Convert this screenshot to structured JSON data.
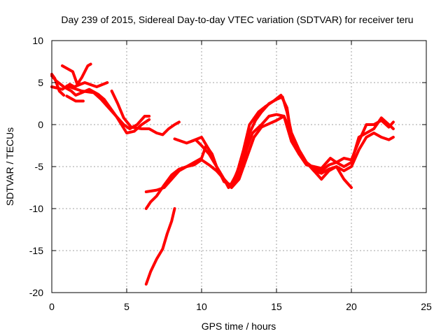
{
  "chart_data": {
    "type": "line",
    "title": "Day 239 of 2015, Sidereal Day-to-day VTEC variation (SDTVAR) for receiver teru",
    "xlabel": "GPS time / hours",
    "ylabel": "SDTVAR / TECUs",
    "xlim": [
      0,
      25
    ],
    "ylim": [
      -20,
      10
    ],
    "xticks": [
      0,
      5,
      10,
      15,
      20,
      25
    ],
    "yticks": [
      10,
      5,
      0,
      -5,
      -10,
      -15,
      -20
    ],
    "grid": true,
    "series_color": "#ff0000",
    "series": [
      {
        "name": "track-1",
        "points": [
          [
            0,
            4.5
          ],
          [
            0.7,
            4.2
          ],
          [
            1.2,
            4.8
          ],
          [
            1.5,
            4.5
          ],
          [
            2.2,
            5.0
          ],
          [
            3.0,
            4.5
          ],
          [
            3.7,
            5.0
          ]
        ]
      },
      {
        "name": "track-2",
        "points": [
          [
            0,
            5.8
          ],
          [
            0.3,
            5.2
          ],
          [
            0.8,
            4.5
          ],
          [
            1.3,
            4.0
          ],
          [
            1.6,
            3.5
          ],
          [
            2.0,
            3.8
          ],
          [
            2.5,
            4.2
          ],
          [
            3.1,
            3.6
          ],
          [
            3.5,
            3.0
          ],
          [
            4.3,
            1.0
          ],
          [
            5.0,
            -1.0
          ],
          [
            5.5,
            -0.8
          ],
          [
            6.0,
            0.0
          ],
          [
            6.5,
            0.6
          ]
        ]
      },
      {
        "name": "track-3",
        "points": [
          [
            0,
            6.0
          ],
          [
            0.2,
            5.5
          ],
          [
            0.5,
            4.0
          ],
          [
            0.8,
            3.5
          ]
        ]
      },
      {
        "name": "track-4",
        "points": [
          [
            0.7,
            7.0
          ],
          [
            1.4,
            6.3
          ],
          [
            1.7,
            4.8
          ],
          [
            2.0,
            5.6
          ],
          [
            2.4,
            7.0
          ],
          [
            2.6,
            7.2
          ]
        ]
      },
      {
        "name": "track-5",
        "points": [
          [
            1.0,
            3.4
          ],
          [
            1.6,
            2.8
          ],
          [
            2.1,
            2.8
          ]
        ]
      },
      {
        "name": "track-6",
        "points": [
          [
            1.0,
            4.6
          ],
          [
            2.0,
            4.0
          ],
          [
            2.8,
            3.8
          ],
          [
            3.3,
            3.0
          ],
          [
            3.8,
            2.0
          ],
          [
            4.3,
            1.0
          ],
          [
            4.8,
            0.0
          ],
          [
            5.2,
            -0.5
          ],
          [
            5.7,
            0.0
          ],
          [
            6.2,
            1.0
          ],
          [
            6.5,
            1.0
          ]
        ]
      },
      {
        "name": "track-7",
        "points": [
          [
            4.0,
            4.0
          ],
          [
            4.4,
            2.5
          ],
          [
            4.8,
            0.8
          ],
          [
            5.3,
            -0.3
          ],
          [
            6.0,
            -0.5
          ],
          [
            6.5,
            -0.5
          ],
          [
            7.0,
            -1.0
          ],
          [
            7.4,
            -1.2
          ],
          [
            7.8,
            -0.5
          ],
          [
            8.2,
            0.0
          ],
          [
            8.5,
            0.3
          ]
        ]
      },
      {
        "name": "track-8",
        "points": [
          [
            6.3,
            -10.0
          ],
          [
            6.6,
            -9.2
          ],
          [
            7.0,
            -8.5
          ],
          [
            7.5,
            -7.2
          ],
          [
            8.0,
            -6.0
          ],
          [
            8.5,
            -5.3
          ],
          [
            9.0,
            -5.0
          ],
          [
            9.5,
            -4.8
          ],
          [
            10.0,
            -4.2
          ],
          [
            10.5,
            -4.8
          ],
          [
            11.0,
            -5.5
          ],
          [
            11.5,
            -6.5
          ],
          [
            12.0,
            -7.5
          ],
          [
            12.5,
            -6.5
          ],
          [
            13.0,
            -4.0
          ],
          [
            13.5,
            -1.5
          ],
          [
            14.0,
            -0.3
          ],
          [
            14.5,
            0.1
          ],
          [
            15.0,
            0.5
          ],
          [
            15.5,
            1.0
          ],
          [
            16.0,
            -1.0
          ],
          [
            16.5,
            -3.0
          ],
          [
            17.0,
            -4.5
          ],
          [
            17.5,
            -5.5
          ],
          [
            18.0,
            -5.8
          ],
          [
            18.5,
            -5.3
          ],
          [
            19.0,
            -5.0
          ],
          [
            19.5,
            -5.5
          ],
          [
            20.0,
            -5.0
          ],
          [
            20.5,
            -3.0
          ],
          [
            21.0,
            -1.5
          ],
          [
            21.5,
            -1.0
          ],
          [
            22.0,
            -1.5
          ],
          [
            22.5,
            -1.8
          ],
          [
            22.8,
            -1.5
          ]
        ]
      },
      {
        "name": "track-9",
        "points": [
          [
            6.3,
            -8.0
          ],
          [
            7.0,
            -7.8
          ],
          [
            7.5,
            -7.5
          ],
          [
            8.0,
            -6.5
          ],
          [
            8.5,
            -5.5
          ],
          [
            9.0,
            -5.0
          ],
          [
            9.5,
            -4.5
          ],
          [
            10.0,
            -4.0
          ],
          [
            10.3,
            -2.5
          ],
          [
            10.7,
            -3.5
          ],
          [
            11.0,
            -5.0
          ],
          [
            11.5,
            -6.5
          ],
          [
            11.8,
            -7.5
          ],
          [
            12.2,
            -7.0
          ],
          [
            12.6,
            -5.5
          ],
          [
            13.0,
            -3.0
          ],
          [
            13.4,
            -1.0
          ],
          [
            14.0,
            0.0
          ],
          [
            14.5,
            1.0
          ],
          [
            15.0,
            1.2
          ],
          [
            15.5,
            1.0
          ],
          [
            16.0,
            -2.0
          ],
          [
            16.5,
            -3.5
          ],
          [
            17.0,
            -4.5
          ],
          [
            17.5,
            -5.5
          ],
          [
            18.0,
            -6.5
          ],
          [
            18.5,
            -5.5
          ],
          [
            19.0,
            -5.0
          ],
          [
            19.5,
            -6.5
          ],
          [
            20.0,
            -7.5
          ]
        ]
      },
      {
        "name": "track-10",
        "points": [
          [
            8.2,
            -1.7
          ],
          [
            9.0,
            -2.2
          ],
          [
            9.6,
            -1.8
          ],
          [
            10.0,
            -2.5
          ],
          [
            10.5,
            -3.5
          ],
          [
            11.0,
            -5.0
          ],
          [
            11.5,
            -6.5
          ],
          [
            11.9,
            -7.3
          ],
          [
            12.3,
            -6.0
          ],
          [
            12.8,
            -3.5
          ],
          [
            13.2,
            -1.0
          ],
          [
            13.6,
            0.5
          ],
          [
            14.0,
            1.5
          ],
          [
            14.5,
            2.5
          ],
          [
            15.0,
            3.0
          ],
          [
            15.4,
            3.3
          ],
          [
            15.7,
            1.5
          ],
          [
            16.0,
            -1.0
          ],
          [
            16.5,
            -3.0
          ],
          [
            17.0,
            -4.5
          ],
          [
            17.5,
            -5.2
          ],
          [
            18.0,
            -5.5
          ],
          [
            18.5,
            -4.8
          ],
          [
            19.0,
            -4.5
          ],
          [
            19.5,
            -4.0
          ],
          [
            20.0,
            -4.2
          ],
          [
            20.5,
            -2.0
          ],
          [
            21.0,
            0.0
          ],
          [
            21.5,
            0.0
          ],
          [
            22.0,
            0.5
          ],
          [
            22.5,
            -0.3
          ],
          [
            22.8,
            0.3
          ]
        ]
      },
      {
        "name": "track-11",
        "points": [
          [
            9.3,
            -2.0
          ],
          [
            10.0,
            -1.5
          ],
          [
            10.5,
            -3.0
          ],
          [
            11.0,
            -5.0
          ],
          [
            11.5,
            -6.8
          ],
          [
            12.0,
            -7.2
          ],
          [
            12.4,
            -5.5
          ],
          [
            12.8,
            -3.0
          ],
          [
            13.2,
            0.0
          ],
          [
            13.8,
            1.5
          ],
          [
            14.3,
            2.2
          ],
          [
            14.8,
            2.8
          ],
          [
            15.3,
            3.5
          ],
          [
            15.7,
            2.0
          ],
          [
            16.0,
            -1.5
          ],
          [
            16.5,
            -3.5
          ],
          [
            17.0,
            -4.8
          ],
          [
            17.5,
            -5.0
          ],
          [
            18.0,
            -5.2
          ],
          [
            18.6,
            -4.0
          ],
          [
            19.0,
            -4.5
          ],
          [
            19.5,
            -5.0
          ],
          [
            20.0,
            -4.5
          ],
          [
            20.5,
            -1.5
          ],
          [
            21.0,
            -1.0
          ],
          [
            21.5,
            -0.5
          ],
          [
            22.0,
            0.8
          ],
          [
            22.5,
            0.0
          ],
          [
            22.8,
            -0.5
          ]
        ]
      },
      {
        "name": "track-12",
        "points": [
          [
            6.3,
            -19.0
          ],
          [
            6.6,
            -17.5
          ],
          [
            7.0,
            -16.0
          ],
          [
            7.4,
            -14.8
          ],
          [
            7.7,
            -13.0
          ],
          [
            8.0,
            -11.5
          ],
          [
            8.2,
            -10.0
          ]
        ]
      }
    ]
  }
}
